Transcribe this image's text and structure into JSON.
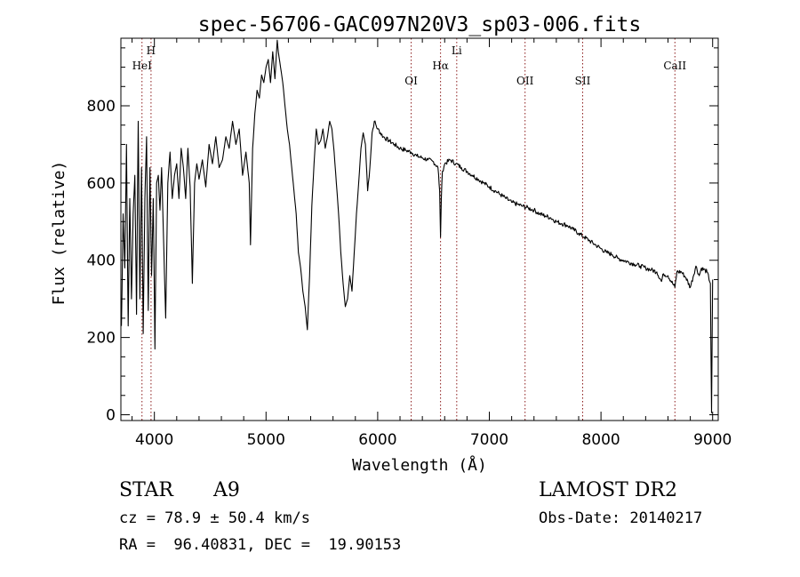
{
  "chart_data": {
    "type": "line",
    "title": "spec-56706-GAC097N20V3_sp03-006.fits",
    "xlabel": "Wavelength (Å)",
    "ylabel": "Flux (relative)",
    "xlim": [
      3700,
      9050
    ],
    "ylim": [
      -15,
      975
    ],
    "x_ticks": [
      4000,
      5000,
      6000,
      7000,
      8000,
      9000
    ],
    "y_ticks": [
      0,
      200,
      400,
      600,
      800
    ],
    "grid": false,
    "line_color": "#000000",
    "marker_color": "#8b1a1a",
    "lines": [
      {
        "label": "HeI",
        "wavelength": 3889
      },
      {
        "label": "H",
        "wavelength": 3970
      },
      {
        "label": "OI",
        "wavelength": 6300
      },
      {
        "label": "Hα",
        "wavelength": 6563
      },
      {
        "label": "Li",
        "wavelength": 6708
      },
      {
        "label": "OII",
        "wavelength": 7320
      },
      {
        "label": "SII",
        "wavelength": 7836
      },
      {
        "label": "CaII",
        "wavelength": 8662
      }
    ],
    "series": [
      {
        "x": [
          3705,
          3720,
          3735,
          3750,
          3765,
          3780,
          3795,
          3810,
          3825,
          3840,
          3855,
          3870,
          3885,
          3900,
          3915,
          3930,
          3945,
          3960,
          3975,
          3990,
          4005,
          4020,
          4035,
          4050,
          4065,
          4080,
          4101,
          4120,
          4140,
          4160,
          4180,
          4200,
          4220,
          4240,
          4260,
          4280,
          4300,
          4320,
          4340,
          4360,
          4380,
          4400,
          4430,
          4460,
          4490,
          4520,
          4550,
          4580,
          4610,
          4640,
          4670,
          4700,
          4730,
          4760,
          4790,
          4820,
          4850,
          4861,
          4880,
          4900,
          4920,
          4940,
          4960,
          4980,
          5000,
          5020,
          5040,
          5060,
          5080,
          5100,
          5110,
          5130,
          5150,
          5170,
          5190,
          5210,
          5230,
          5250,
          5270,
          5290,
          5310,
          5330,
          5350,
          5370,
          5390,
          5410,
          5430,
          5450,
          5470,
          5490,
          5510,
          5530,
          5550,
          5570,
          5590,
          5610,
          5630,
          5650,
          5670,
          5690,
          5710,
          5730,
          5750,
          5770,
          5790,
          5810,
          5830,
          5850,
          5870,
          5890,
          5910,
          5930,
          5950,
          5970,
          6000,
          6050,
          6100,
          6150,
          6200,
          6250,
          6300,
          6350,
          6400,
          6450,
          6500,
          6540,
          6555,
          6563,
          6570,
          6580,
          6600,
          6650,
          6700,
          6750,
          6800,
          6850,
          6900,
          6950,
          7000,
          7050,
          7100,
          7150,
          7200,
          7250,
          7300,
          7350,
          7400,
          7450,
          7500,
          7550,
          7600,
          7650,
          7700,
          7750,
          7800,
          7850,
          7900,
          7950,
          8000,
          8050,
          8100,
          8150,
          8200,
          8250,
          8300,
          8350,
          8400,
          8450,
          8500,
          8542,
          8560,
          8600,
          8662,
          8680,
          8720,
          8760,
          8800,
          8850,
          8880,
          8900,
          8950,
          8980,
          8990,
          9000
        ],
        "y": [
          230,
          520,
          380,
          700,
          230,
          560,
          300,
          520,
          620,
          260,
          760,
          300,
          640,
          210,
          560,
          720,
          270,
          640,
          360,
          560,
          170,
          600,
          620,
          530,
          640,
          480,
          250,
          600,
          680,
          560,
          620,
          650,
          560,
          690,
          640,
          560,
          690,
          590,
          340,
          600,
          650,
          610,
          660,
          590,
          700,
          650,
          720,
          640,
          660,
          720,
          690,
          760,
          700,
          740,
          620,
          680,
          600,
          440,
          690,
          780,
          840,
          820,
          880,
          860,
          900,
          920,
          860,
          940,
          870,
          970,
          940,
          900,
          860,
          800,
          740,
          700,
          640,
          580,
          520,
          420,
          380,
          320,
          280,
          220,
          360,
          540,
          650,
          740,
          700,
          710,
          740,
          690,
          720,
          760,
          740,
          680,
          600,
          520,
          420,
          340,
          280,
          300,
          360,
          320,
          420,
          520,
          600,
          690,
          730,
          700,
          580,
          640,
          730,
          760,
          740,
          720,
          710,
          700,
          690,
          685,
          680,
          670,
          665,
          660,
          655,
          640,
          580,
          460,
          560,
          630,
          650,
          660,
          650,
          640,
          630,
          620,
          610,
          600,
          590,
          580,
          570,
          560,
          550,
          545,
          540,
          535,
          530,
          520,
          515,
          510,
          500,
          495,
          490,
          480,
          470,
          460,
          450,
          440,
          430,
          420,
          415,
          405,
          400,
          395,
          390,
          385,
          380,
          375,
          370,
          345,
          365,
          360,
          330,
          370,
          370,
          355,
          330,
          385,
          360,
          380,
          370,
          340,
          5,
          350
        ]
      }
    ]
  },
  "info": {
    "class_label": "STAR",
    "subclass": "A9",
    "cz": "cz = 78.9 ± 50.4 km/s",
    "coords": "RA =  96.40831, DEC =  19.90153",
    "survey": "LAMOST DR2",
    "obs_date": "Obs-Date: 20140217"
  }
}
